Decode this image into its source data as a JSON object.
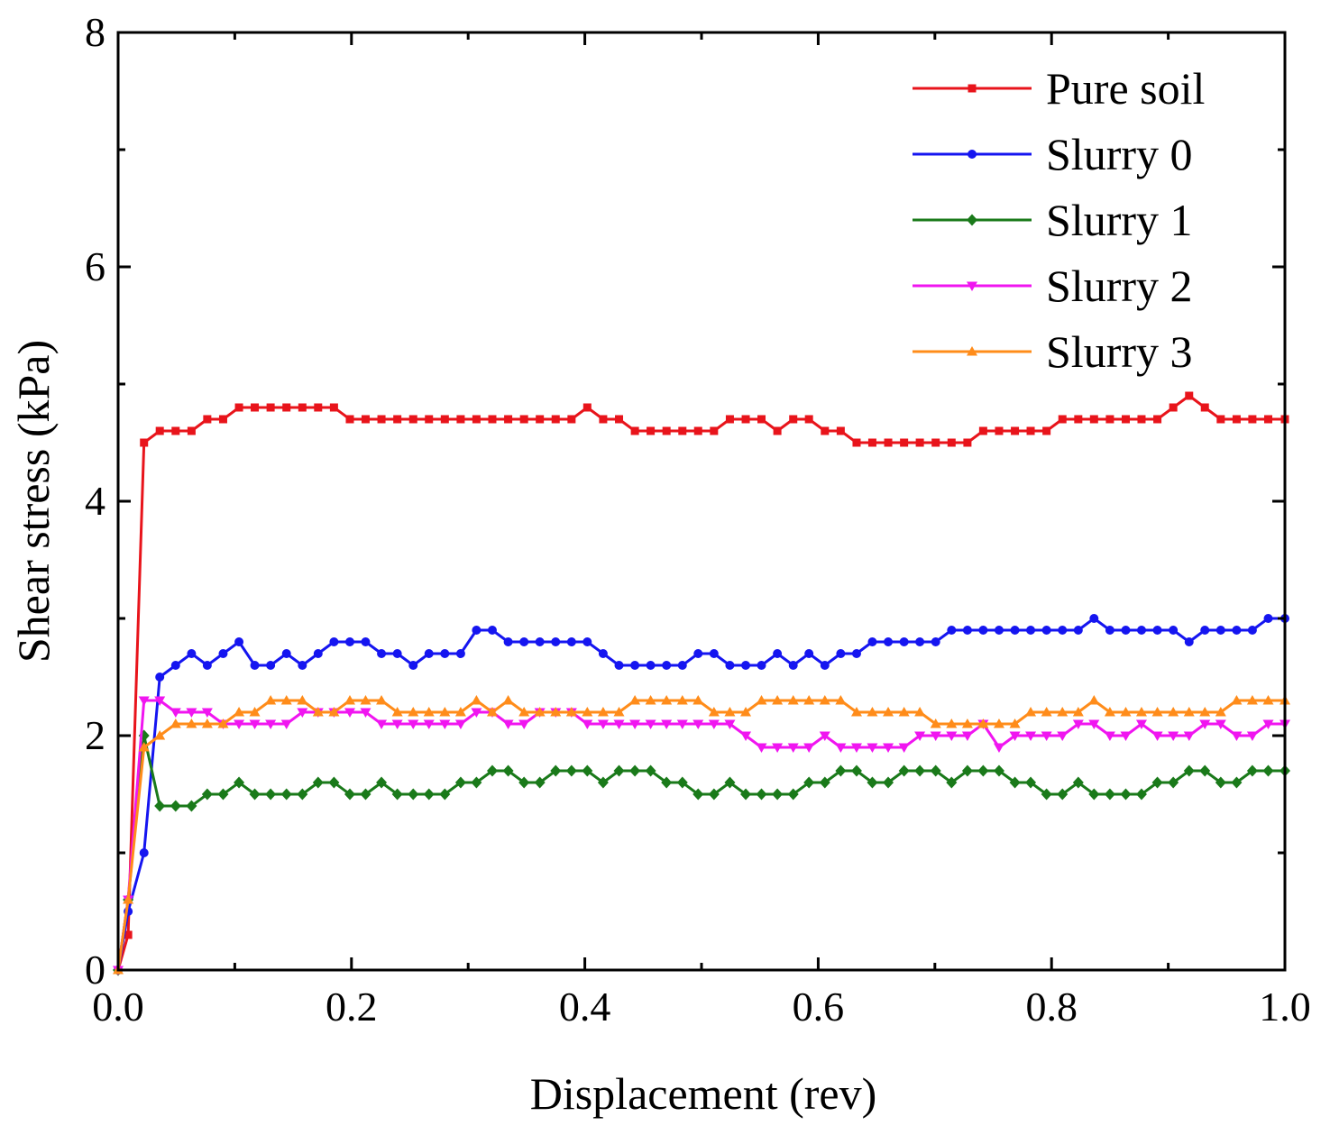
{
  "chart_data": {
    "type": "line",
    "title": "",
    "xlabel": "Displacement (rev)",
    "ylabel": "Shear stress (kPa)",
    "xlim": [
      0,
      1.0
    ],
    "ylim": [
      0,
      8
    ],
    "xticks": [
      0.0,
      0.2,
      0.4,
      0.6,
      0.8,
      1.0
    ],
    "xtick_labels": [
      "0.0",
      "0.2",
      "0.4",
      "0.6",
      "0.8",
      "1.0"
    ],
    "yticks": [
      0,
      2,
      4,
      6,
      8
    ],
    "ytick_labels": [
      "0",
      "2",
      "4",
      "6",
      "8"
    ],
    "grid": false,
    "legend_position": "top-right",
    "x": [
      0,
      0.0086,
      0.0222,
      0.0357,
      0.0493,
      0.0629,
      0.0764,
      0.09,
      0.1036,
      0.1171,
      0.1307,
      0.1443,
      0.1579,
      0.1714,
      0.185,
      0.1986,
      0.2121,
      0.2257,
      0.2393,
      0.2529,
      0.2664,
      0.28,
      0.2936,
      0.3071,
      0.3207,
      0.3343,
      0.3479,
      0.3614,
      0.375,
      0.3886,
      0.4021,
      0.4157,
      0.4293,
      0.4429,
      0.4564,
      0.47,
      0.4836,
      0.4971,
      0.5107,
      0.5243,
      0.5379,
      0.5514,
      0.565,
      0.5786,
      0.5921,
      0.6057,
      0.6193,
      0.6329,
      0.6464,
      0.66,
      0.6736,
      0.6871,
      0.7007,
      0.7143,
      0.7279,
      0.7414,
      0.755,
      0.7686,
      0.7821,
      0.7957,
      0.8093,
      0.8229,
      0.8364,
      0.85,
      0.8636,
      0.8771,
      0.8907,
      0.9043,
      0.9179,
      0.9314,
      0.945,
      0.9586,
      0.9721,
      0.9857,
      1.0
    ],
    "series": [
      {
        "name": "Pure soil",
        "color": "#e8141b",
        "marker": "square",
        "values": [
          0,
          0.3,
          4.5,
          4.6,
          4.6,
          4.6,
          4.7,
          4.7,
          4.8,
          4.8,
          4.8,
          4.8,
          4.8,
          4.8,
          4.8,
          4.7,
          4.7,
          4.7,
          4.7,
          4.7,
          4.7,
          4.7,
          4.7,
          4.7,
          4.7,
          4.7,
          4.7,
          4.7,
          4.7,
          4.7,
          4.8,
          4.7,
          4.7,
          4.6,
          4.6,
          4.6,
          4.6,
          4.6,
          4.6,
          4.7,
          4.7,
          4.7,
          4.6,
          4.7,
          4.7,
          4.6,
          4.6,
          4.5,
          4.5,
          4.5,
          4.5,
          4.5,
          4.5,
          4.5,
          4.5,
          4.6,
          4.6,
          4.6,
          4.6,
          4.6,
          4.7,
          4.7,
          4.7,
          4.7,
          4.7,
          4.7,
          4.7,
          4.8,
          4.9,
          4.8,
          4.7,
          4.7,
          4.7,
          4.7,
          4.7
        ]
      },
      {
        "name": "Slurry 0",
        "color": "#1515f0",
        "marker": "circle",
        "values": [
          0,
          0.5,
          1.0,
          2.5,
          2.6,
          2.7,
          2.6,
          2.7,
          2.8,
          2.6,
          2.6,
          2.7,
          2.6,
          2.7,
          2.8,
          2.8,
          2.8,
          2.7,
          2.7,
          2.6,
          2.7,
          2.7,
          2.7,
          2.9,
          2.9,
          2.8,
          2.8,
          2.8,
          2.8,
          2.8,
          2.8,
          2.7,
          2.6,
          2.6,
          2.6,
          2.6,
          2.6,
          2.7,
          2.7,
          2.6,
          2.6,
          2.6,
          2.7,
          2.6,
          2.7,
          2.6,
          2.7,
          2.7,
          2.8,
          2.8,
          2.8,
          2.8,
          2.8,
          2.9,
          2.9,
          2.9,
          2.9,
          2.9,
          2.9,
          2.9,
          2.9,
          2.9,
          3.0,
          2.9,
          2.9,
          2.9,
          2.9,
          2.9,
          2.8,
          2.9,
          2.9,
          2.9,
          2.9,
          3.0,
          3.0
        ]
      },
      {
        "name": "Slurry 1",
        "color": "#1a7a1a",
        "marker": "diamond",
        "values": [
          0,
          0.6,
          2.0,
          1.4,
          1.4,
          1.4,
          1.5,
          1.5,
          1.6,
          1.5,
          1.5,
          1.5,
          1.5,
          1.6,
          1.6,
          1.5,
          1.5,
          1.6,
          1.5,
          1.5,
          1.5,
          1.5,
          1.6,
          1.6,
          1.7,
          1.7,
          1.6,
          1.6,
          1.7,
          1.7,
          1.7,
          1.6,
          1.7,
          1.7,
          1.7,
          1.6,
          1.6,
          1.5,
          1.5,
          1.6,
          1.5,
          1.5,
          1.5,
          1.5,
          1.6,
          1.6,
          1.7,
          1.7,
          1.6,
          1.6,
          1.7,
          1.7,
          1.7,
          1.6,
          1.7,
          1.7,
          1.7,
          1.6,
          1.6,
          1.5,
          1.5,
          1.6,
          1.5,
          1.5,
          1.5,
          1.5,
          1.6,
          1.6,
          1.7,
          1.7,
          1.6,
          1.6,
          1.7,
          1.7,
          1.7
        ]
      },
      {
        "name": "Slurry 2",
        "color": "#f015f0",
        "marker": "triangle-down",
        "values": [
          0,
          0.6,
          2.3,
          2.3,
          2.2,
          2.2,
          2.2,
          2.1,
          2.1,
          2.1,
          2.1,
          2.1,
          2.2,
          2.2,
          2.2,
          2.2,
          2.2,
          2.1,
          2.1,
          2.1,
          2.1,
          2.1,
          2.1,
          2.2,
          2.2,
          2.1,
          2.1,
          2.2,
          2.2,
          2.2,
          2.1,
          2.1,
          2.1,
          2.1,
          2.1,
          2.1,
          2.1,
          2.1,
          2.1,
          2.1,
          2.0,
          1.9,
          1.9,
          1.9,
          1.9,
          2.0,
          1.9,
          1.9,
          1.9,
          1.9,
          1.9,
          2.0,
          2.0,
          2.0,
          2.0,
          2.1,
          1.9,
          2.0,
          2.0,
          2.0,
          2.0,
          2.1,
          2.1,
          2.0,
          2.0,
          2.1,
          2.0,
          2.0,
          2.0,
          2.1,
          2.1,
          2.0,
          2.0,
          2.1,
          2.1
        ]
      },
      {
        "name": "Slurry 3",
        "color": "#ff8c1a",
        "marker": "triangle-up",
        "values": [
          0,
          0.6,
          1.9,
          2.0,
          2.1,
          2.1,
          2.1,
          2.1,
          2.2,
          2.2,
          2.3,
          2.3,
          2.3,
          2.2,
          2.2,
          2.3,
          2.3,
          2.3,
          2.2,
          2.2,
          2.2,
          2.2,
          2.2,
          2.3,
          2.2,
          2.3,
          2.2,
          2.2,
          2.2,
          2.2,
          2.2,
          2.2,
          2.2,
          2.3,
          2.3,
          2.3,
          2.3,
          2.3,
          2.2,
          2.2,
          2.2,
          2.3,
          2.3,
          2.3,
          2.3,
          2.3,
          2.3,
          2.2,
          2.2,
          2.2,
          2.2,
          2.2,
          2.1,
          2.1,
          2.1,
          2.1,
          2.1,
          2.1,
          2.2,
          2.2,
          2.2,
          2.2,
          2.3,
          2.2,
          2.2,
          2.2,
          2.2,
          2.2,
          2.2,
          2.2,
          2.2,
          2.3,
          2.3,
          2.3,
          2.3
        ]
      }
    ]
  }
}
